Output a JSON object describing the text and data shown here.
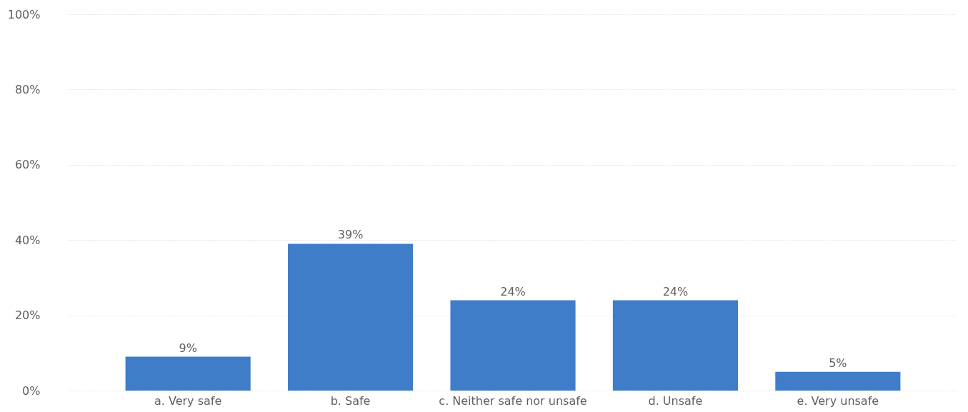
{
  "chart_data": {
    "type": "bar",
    "categories": [
      "a. Very safe",
      "b. Safe",
      "c. Neither safe nor unsafe",
      "d. Unsafe",
      "e. Very unsafe"
    ],
    "values": [
      9,
      39,
      24,
      24,
      5
    ],
    "value_labels": [
      "9%",
      "39%",
      "24%",
      "24%",
      "5%"
    ],
    "color": "#3f7dc9",
    "ylim": [
      0,
      100
    ],
    "yticks": [
      {
        "value": 0,
        "label": "0%"
      },
      {
        "value": 20,
        "label": "20%"
      },
      {
        "value": 40,
        "label": "40%"
      },
      {
        "value": 60,
        "label": "60%"
      },
      {
        "value": 80,
        "label": "80%"
      },
      {
        "value": 100,
        "label": "100%"
      }
    ],
    "grid": "y"
  }
}
